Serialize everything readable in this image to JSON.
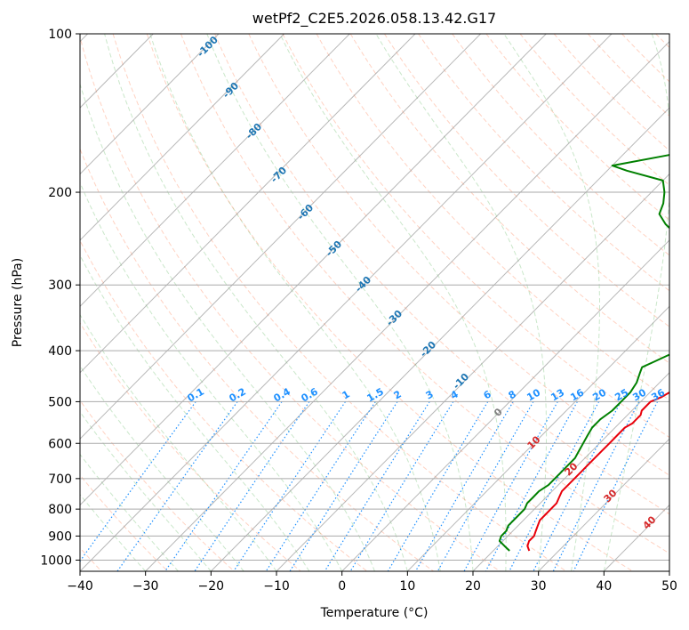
{
  "chart_data": {
    "type": "skew-t",
    "title": "wetPf2_C2E5.2026.058.13.42.G17",
    "xlabel": "Temperature (°C)",
    "ylabel": "Pressure (hPa)",
    "xlim": [
      -40,
      50
    ],
    "ylim": [
      1050,
      100
    ],
    "x_ticks": [
      -40,
      -30,
      -20,
      -10,
      0,
      10,
      20,
      30,
      40,
      50
    ],
    "y_ticks": [
      100,
      200,
      300,
      400,
      500,
      600,
      700,
      800,
      900,
      1000
    ],
    "grid": true,
    "skew_isotherm_labels": [
      {
        "label": "0",
        "temp": 0,
        "p": 530,
        "style": "zero"
      },
      {
        "label": "10",
        "temp": 10,
        "p": 610,
        "style": "iso"
      },
      {
        "label": "20",
        "temp": 20,
        "p": 700,
        "style": "iso"
      },
      {
        "label": "30",
        "temp": 30,
        "p": 790,
        "style": "iso"
      },
      {
        "label": "40",
        "temp": 40,
        "p": 885,
        "style": "iso"
      }
    ],
    "dry_adiabat_labels": [
      "-100",
      "-90",
      "-80",
      "-70",
      "-60",
      "-50",
      "-40",
      "-30",
      "-20",
      "-10"
    ],
    "mixing_ratio_labels": [
      "0.1",
      "0.2",
      "0.4",
      "0.6",
      "1",
      "1.5",
      "2",
      "3",
      "4",
      "6",
      "8",
      "10",
      "13",
      "16",
      "20",
      "25",
      "30",
      "36"
    ],
    "series": [
      {
        "name": "Temperature",
        "color": "#e8000b",
        "points": [
          [
            -1.5,
            100
          ],
          [
            -2.5,
            110
          ],
          [
            -3,
            120
          ],
          [
            -3,
            130
          ],
          [
            -2.5,
            140
          ],
          [
            -2,
            150
          ],
          [
            -1,
            160
          ],
          [
            0.5,
            170
          ],
          [
            2.5,
            180
          ],
          [
            4,
            190
          ],
          [
            5.5,
            200
          ],
          [
            7,
            210
          ],
          [
            8.5,
            220
          ],
          [
            9.5,
            230
          ],
          [
            10.5,
            240
          ],
          [
            11.5,
            250
          ],
          [
            12.5,
            260
          ],
          [
            13.5,
            270
          ],
          [
            14.5,
            280
          ],
          [
            15,
            290
          ],
          [
            15.5,
            300
          ],
          [
            16,
            310
          ],
          [
            16.5,
            320
          ],
          [
            17,
            330
          ],
          [
            17.5,
            340
          ],
          [
            18.5,
            350
          ],
          [
            19,
            360
          ],
          [
            19.5,
            370
          ],
          [
            20,
            380
          ],
          [
            21,
            390
          ],
          [
            22,
            400
          ],
          [
            22.5,
            410
          ],
          [
            23,
            420
          ],
          [
            23.5,
            430
          ],
          [
            23.5,
            440
          ],
          [
            23.5,
            450
          ],
          [
            23.5,
            460
          ],
          [
            23.5,
            470
          ],
          [
            23,
            480
          ],
          [
            22.5,
            490
          ],
          [
            21.5,
            500
          ],
          [
            21.5,
            510
          ],
          [
            21.5,
            520
          ],
          [
            22,
            530
          ],
          [
            22,
            540
          ],
          [
            22,
            550
          ],
          [
            21.5,
            560
          ],
          [
            21.5,
            580
          ],
          [
            21.5,
            600
          ],
          [
            21.5,
            620
          ],
          [
            21.5,
            640
          ],
          [
            21.5,
            660
          ],
          [
            21.5,
            680
          ],
          [
            21.5,
            700
          ],
          [
            21.5,
            720
          ],
          [
            21.5,
            740
          ],
          [
            22,
            760
          ],
          [
            22.5,
            780
          ],
          [
            22.5,
            800
          ],
          [
            22.5,
            820
          ],
          [
            22.5,
            840
          ],
          [
            23,
            860
          ],
          [
            23.5,
            880
          ],
          [
            24,
            900
          ],
          [
            24,
            920
          ],
          [
            24.5,
            940
          ],
          [
            25.5,
            960
          ]
        ]
      },
      {
        "name": "Dewpoint",
        "color": "#008000",
        "points": [
          [
            -4,
            100
          ],
          [
            -5.5,
            110
          ],
          [
            -5.5,
            120
          ],
          [
            -5,
            130
          ],
          [
            -4.5,
            140
          ],
          [
            -5.5,
            150
          ],
          [
            -8,
            160
          ],
          [
            -13,
            170
          ],
          [
            -20,
            178
          ],
          [
            -17,
            182
          ],
          [
            -10,
            190
          ],
          [
            -8,
            200
          ],
          [
            -6.5,
            210
          ],
          [
            -5.5,
            220
          ],
          [
            -3,
            230
          ],
          [
            0,
            240
          ],
          [
            2,
            250
          ],
          [
            4,
            260
          ],
          [
            6.5,
            270
          ],
          [
            9,
            280
          ],
          [
            11.5,
            290
          ],
          [
            13,
            300
          ],
          [
            13.5,
            310
          ],
          [
            14,
            320
          ],
          [
            14.5,
            330
          ],
          [
            15.5,
            340
          ],
          [
            16.5,
            350
          ],
          [
            17,
            360
          ],
          [
            17,
            370
          ],
          [
            17.5,
            380
          ],
          [
            17.5,
            390
          ],
          [
            18,
            400
          ],
          [
            17,
            410
          ],
          [
            16,
            420
          ],
          [
            15,
            430
          ],
          [
            15.5,
            440
          ],
          [
            16,
            450
          ],
          [
            16.5,
            460
          ],
          [
            17,
            480
          ],
          [
            17,
            500
          ],
          [
            17,
            520
          ],
          [
            16.5,
            540
          ],
          [
            16.5,
            560
          ],
          [
            17,
            580
          ],
          [
            17.5,
            600
          ],
          [
            18,
            620
          ],
          [
            18.5,
            640
          ],
          [
            18.5,
            660
          ],
          [
            18.5,
            680
          ],
          [
            18.5,
            700
          ],
          [
            18.5,
            720
          ],
          [
            18,
            740
          ],
          [
            18,
            760
          ],
          [
            18,
            780
          ],
          [
            18.5,
            800
          ],
          [
            18.5,
            820
          ],
          [
            18.5,
            840
          ],
          [
            18.5,
            860
          ],
          [
            19,
            880
          ],
          [
            19,
            900
          ],
          [
            19.5,
            920
          ],
          [
            21,
            940
          ],
          [
            22.5,
            960
          ]
        ]
      }
    ]
  }
}
